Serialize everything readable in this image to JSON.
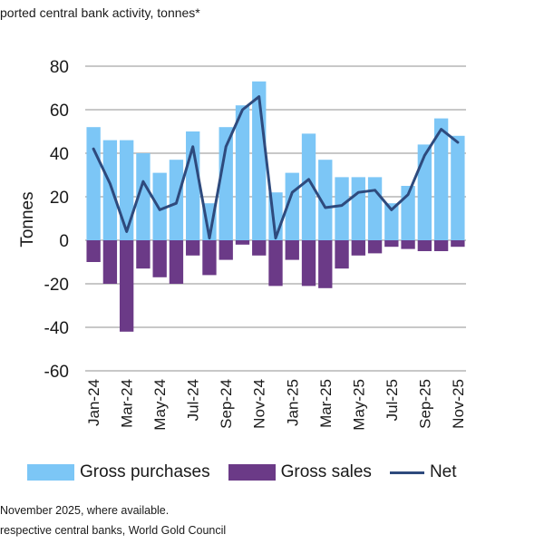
{
  "header": {
    "title": "ported central bank activity, tonnes*"
  },
  "legend": {
    "purchases_label": "Gross purchases",
    "sales_label": "Gross sales",
    "net_label": "Net"
  },
  "footnotes": {
    "note": "November 2025, where available.",
    "source": "respective central banks, World Gold Council"
  },
  "colors": {
    "purchases": "#7cc6f6",
    "sales": "#6b3a87",
    "net": "#2e4a7d",
    "grid": "#a6a6a6"
  },
  "chart_data": {
    "type": "bar",
    "title": "ported central bank activity, tonnes*",
    "ylabel": "Tonnes",
    "ylim": [
      -60,
      80
    ],
    "yticks": [
      80,
      60,
      40,
      20,
      0,
      -20,
      -40,
      -60
    ],
    "categories": [
      "Jan-24",
      "Feb-24",
      "Mar-24",
      "Apr-24",
      "May-24",
      "Jun-24",
      "Jul-24",
      "Aug-24",
      "Sep-24",
      "Oct-24",
      "Nov-24",
      "Dec-24",
      "Jan-25",
      "Feb-25",
      "Mar-25",
      "Apr-25",
      "May-25",
      "Jun-25",
      "Jul-25",
      "Aug-25",
      "Sep-25",
      "Oct-25",
      "Nov-25"
    ],
    "xtick_labels": [
      "Jan-24",
      "Mar-24",
      "May-24",
      "Jul-24",
      "Sep-24",
      "Nov-24",
      "Jan-25",
      "Mar-25",
      "May-25",
      "Jul-25",
      "Sep-25",
      "Nov-25"
    ],
    "series": [
      {
        "name": "Gross purchases",
        "type": "bar",
        "values": [
          52,
          46,
          46,
          40,
          31,
          37,
          50,
          17,
          52,
          62,
          73,
          22,
          31,
          49,
          37,
          29,
          29,
          29,
          17,
          25,
          44,
          56,
          48
        ]
      },
      {
        "name": "Gross sales",
        "type": "bar",
        "values": [
          -10,
          -20,
          -42,
          -13,
          -17,
          -20,
          -7,
          -16,
          -9,
          -2,
          -7,
          -21,
          -9,
          -21,
          -22,
          -13,
          -7,
          -6,
          -3,
          -4,
          -5,
          -5,
          -3
        ]
      },
      {
        "name": "Net",
        "type": "line",
        "values": [
          42,
          26,
          4,
          27,
          14,
          17,
          43,
          1,
          43,
          60,
          66,
          1,
          22,
          28,
          15,
          16,
          22,
          23,
          14,
          21,
          39,
          51,
          45
        ]
      }
    ]
  }
}
